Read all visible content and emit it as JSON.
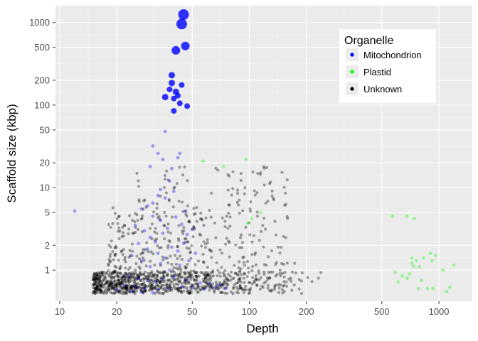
{
  "chart_data": {
    "type": "scatter",
    "xlabel": "Depth",
    "ylabel": "Scaffold size (kbp)",
    "x_scale": "log",
    "y_scale": "log",
    "xlim": [
      9.5,
      1500
    ],
    "ylim": [
      0.42,
      1600
    ],
    "x_ticks": [
      10,
      20,
      50,
      100,
      200,
      500,
      1000
    ],
    "x_tick_labels": [
      "10",
      "20",
      "50",
      "100",
      "200",
      "500",
      "1000"
    ],
    "y_ticks": [
      1,
      2,
      5,
      10,
      20,
      50,
      100,
      200,
      500,
      1000
    ],
    "y_tick_labels": [
      "1",
      "2",
      "5",
      "10",
      "20",
      "50",
      "100",
      "200",
      "500",
      "1000"
    ],
    "grid": true,
    "legend": {
      "title": "Organelle",
      "placement": "top-right",
      "entries": [
        {
          "label": "Mitochondrion",
          "color": "#0000ff"
        },
        {
          "label": "Plastid",
          "color": "#00ff00"
        },
        {
          "label": "Unknown",
          "color": "#000000"
        }
      ]
    },
    "series": [
      {
        "name": "Mitochondrion",
        "color": "#0000ff",
        "points": [
          [
            45,
            1250,
            15
          ],
          [
            44,
            960,
            15
          ],
          [
            46,
            520,
            12
          ],
          [
            41,
            460,
            12
          ],
          [
            39,
            230,
            9
          ],
          [
            44,
            175,
            8
          ],
          [
            39,
            185,
            9
          ],
          [
            38,
            155,
            8
          ],
          [
            41,
            145,
            9
          ],
          [
            42,
            130,
            8
          ],
          [
            36,
            125,
            9
          ],
          [
            40,
            120,
            8
          ],
          [
            43,
            105,
            8
          ],
          [
            47,
            97,
            8
          ],
          [
            40,
            85,
            8
          ]
        ]
      },
      {
        "name": "Mitochondrion",
        "color": "#0000ff",
        "opacity": 0.35,
        "points": [
          [
            12,
            5.2
          ],
          [
            36,
            48
          ],
          [
            31,
            32
          ],
          [
            33,
            26
          ],
          [
            35,
            22
          ],
          [
            30,
            18
          ],
          [
            39,
            17
          ],
          [
            42,
            23
          ],
          [
            43,
            26
          ],
          [
            38,
            12
          ],
          [
            40,
            9
          ],
          [
            33,
            8
          ],
          [
            36,
            7.5
          ],
          [
            29,
            6
          ],
          [
            31,
            4.5
          ],
          [
            34,
            4
          ],
          [
            27,
            5.5
          ],
          [
            25,
            3.5
          ],
          [
            28,
            3
          ],
          [
            30,
            2.5
          ],
          [
            32,
            2.2
          ],
          [
            35,
            2.8
          ],
          [
            37,
            3.2
          ],
          [
            41,
            4.4
          ],
          [
            44,
            3.6
          ],
          [
            47,
            2.7
          ],
          [
            50,
            3.1
          ],
          [
            26,
            2.1
          ],
          [
            29,
            1.8
          ],
          [
            33,
            1.6
          ],
          [
            36,
            1.4
          ],
          [
            39,
            1.9
          ],
          [
            42,
            1.7
          ],
          [
            24,
            1.5
          ],
          [
            27,
            1.3
          ],
          [
            30,
            1.1
          ],
          [
            34,
            1.2
          ],
          [
            38,
            1.0
          ],
          [
            43,
            1.15
          ],
          [
            48,
            1.3
          ],
          [
            52,
            1.6
          ],
          [
            45,
            2.1
          ],
          [
            31,
            6.5
          ],
          [
            34,
            9.5
          ],
          [
            46,
            5.2
          ],
          [
            23,
            0.85
          ],
          [
            26,
            0.8
          ],
          [
            29,
            0.75
          ],
          [
            32,
            0.72
          ],
          [
            35,
            0.78
          ],
          [
            40,
            0.82
          ],
          [
            46,
            0.76
          ],
          [
            55,
            0.7
          ],
          [
            62,
            0.68
          ],
          [
            70,
            0.66
          ],
          [
            22,
            0.65
          ],
          [
            25,
            0.62
          ],
          [
            28,
            0.6
          ],
          [
            33,
            0.58
          ],
          [
            37,
            0.6
          ],
          [
            44,
            0.63
          ],
          [
            50,
            0.61
          ],
          [
            58,
            0.59
          ],
          [
            66,
            0.62
          ],
          [
            75,
            0.6
          ],
          [
            20,
            0.58
          ],
          [
            24,
            0.55
          ],
          [
            27,
            0.54
          ],
          [
            31,
            0.53
          ]
        ]
      },
      {
        "name": "Plastid",
        "color": "#00ff00",
        "opacity": 0.35,
        "points": [
          [
            57,
            21
          ],
          [
            73,
            18
          ],
          [
            96,
            22
          ],
          [
            115,
            5.0
          ],
          [
            103,
            4.2
          ],
          [
            98,
            3.7
          ],
          [
            570,
            4.5
          ],
          [
            680,
            4.5
          ],
          [
            740,
            4.2
          ],
          [
            590,
            0.95
          ],
          [
            640,
            0.85
          ],
          [
            700,
            0.9
          ],
          [
            735,
            1.1
          ],
          [
            720,
            1.2
          ],
          [
            760,
            1.3
          ],
          [
            790,
            1.1
          ],
          [
            830,
            1.4
          ],
          [
            900,
            1.6
          ],
          [
            920,
            1.3
          ],
          [
            960,
            1.5
          ],
          [
            1050,
            1.0
          ],
          [
            1200,
            1.15
          ],
          [
            680,
            0.8
          ],
          [
            810,
            0.75
          ],
          [
            870,
            0.6
          ],
          [
            780,
            0.6
          ],
          [
            930,
            0.6
          ],
          [
            1100,
            0.55
          ],
          [
            1140,
            0.62
          ],
          [
            720,
            1.4
          ],
          [
            610,
            0.72
          ]
        ]
      }
    ],
    "unknown_points": {
      "color": "#000000",
      "opacity": 0.35,
      "description_count": 1200
    }
  }
}
